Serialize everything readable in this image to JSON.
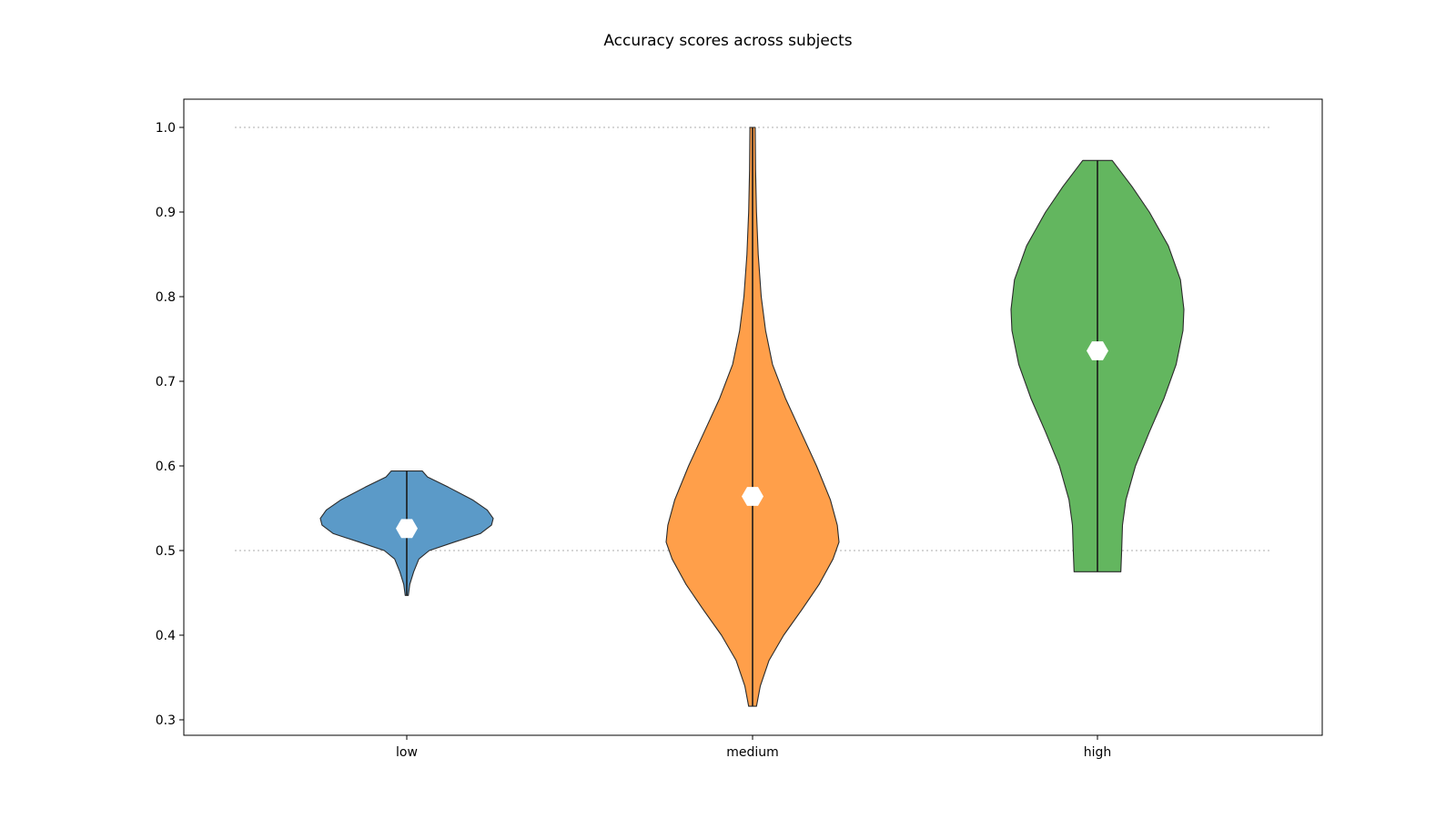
{
  "chart_data": {
    "type": "violin",
    "title": "Accuracy scores across subjects",
    "xlabel": "",
    "ylabel": "",
    "categories": [
      "low",
      "medium",
      "high"
    ],
    "ylim": [
      0.28,
      1.035
    ],
    "yticks": [
      "0.3",
      "0.4",
      "0.5",
      "0.6",
      "0.7",
      "0.8",
      "0.9",
      "1.0"
    ],
    "reference_lines": [
      0.5,
      1.0
    ],
    "grid": false,
    "legend": "none",
    "series": [
      {
        "category": "low",
        "color": "#5b9ac8",
        "min": 0.447,
        "max": 0.594,
        "median": 0.526,
        "density": [
          [
            0.447,
            0.018
          ],
          [
            0.46,
            0.035
          ],
          [
            0.475,
            0.08
          ],
          [
            0.49,
            0.14
          ],
          [
            0.5,
            0.26
          ],
          [
            0.51,
            0.55
          ],
          [
            0.52,
            0.85
          ],
          [
            0.53,
            0.98
          ],
          [
            0.538,
            1.0
          ],
          [
            0.548,
            0.93
          ],
          [
            0.56,
            0.76
          ],
          [
            0.575,
            0.48
          ],
          [
            0.587,
            0.24
          ],
          [
            0.594,
            0.18
          ]
        ]
      },
      {
        "category": "medium",
        "color": "#ff9f4a",
        "min": 0.316,
        "max": 1.0,
        "median": 0.564,
        "density": [
          [
            0.316,
            0.045
          ],
          [
            0.34,
            0.09
          ],
          [
            0.37,
            0.19
          ],
          [
            0.4,
            0.36
          ],
          [
            0.43,
            0.57
          ],
          [
            0.46,
            0.77
          ],
          [
            0.49,
            0.93
          ],
          [
            0.51,
            1.0
          ],
          [
            0.53,
            0.98
          ],
          [
            0.56,
            0.9
          ],
          [
            0.6,
            0.74
          ],
          [
            0.64,
            0.56
          ],
          [
            0.68,
            0.38
          ],
          [
            0.72,
            0.23
          ],
          [
            0.76,
            0.15
          ],
          [
            0.8,
            0.1
          ],
          [
            0.85,
            0.065
          ],
          [
            0.9,
            0.045
          ],
          [
            0.95,
            0.035
          ],
          [
            1.0,
            0.03
          ]
        ]
      },
      {
        "category": "high",
        "color": "#63b65f",
        "min": 0.475,
        "max": 0.961,
        "median": 0.736,
        "density": [
          [
            0.475,
            0.27
          ],
          [
            0.5,
            0.28
          ],
          [
            0.53,
            0.29
          ],
          [
            0.56,
            0.33
          ],
          [
            0.6,
            0.44
          ],
          [
            0.64,
            0.6
          ],
          [
            0.68,
            0.77
          ],
          [
            0.72,
            0.91
          ],
          [
            0.76,
            0.99
          ],
          [
            0.785,
            1.0
          ],
          [
            0.82,
            0.96
          ],
          [
            0.86,
            0.82
          ],
          [
            0.9,
            0.6
          ],
          [
            0.93,
            0.4
          ],
          [
            0.961,
            0.17
          ]
        ]
      }
    ]
  }
}
